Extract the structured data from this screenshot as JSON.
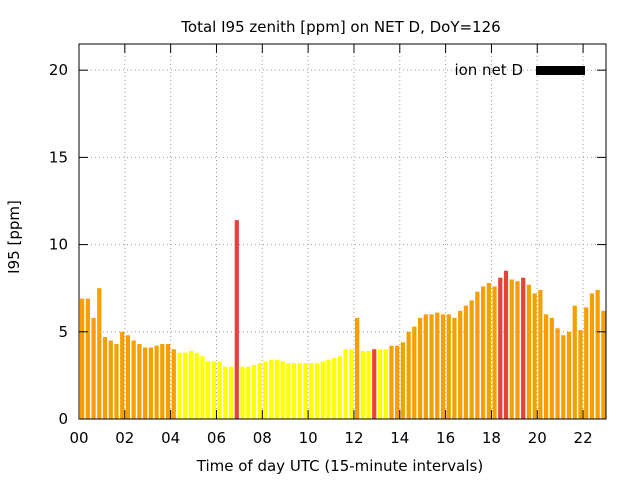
{
  "chart_data": {
    "type": "bar",
    "title": "Total I95 zenith [ppm] on NET D, DoY=126",
    "xlabel": "Time of day UTC (15-minute intervals)",
    "ylabel": "I95 [ppm]",
    "xlim": [
      0,
      23
    ],
    "ylim": [
      0,
      21.5
    ],
    "x_tick_labels": [
      "00",
      "02",
      "04",
      "06",
      "08",
      "10",
      "12",
      "14",
      "16",
      "18",
      "20",
      "22"
    ],
    "x_tick_values": [
      0,
      2,
      4,
      6,
      8,
      10,
      12,
      14,
      16,
      18,
      20,
      22
    ],
    "y_tick_values": [
      0,
      5,
      10,
      15,
      20
    ],
    "grid": true,
    "legend": {
      "position": "top-right",
      "entries": [
        {
          "name": "ion net D",
          "color": "#000000"
        }
      ]
    },
    "interval_hours": 0.25,
    "color_levels": {
      "low": "#ffff00",
      "medium": "#f5a000",
      "high": "#e8413c"
    },
    "values": [
      6.9,
      6.9,
      5.8,
      7.5,
      4.7,
      4.5,
      4.3,
      5.0,
      4.8,
      4.5,
      4.3,
      4.1,
      4.1,
      4.2,
      4.3,
      4.3,
      4.0,
      3.8,
      3.8,
      3.9,
      3.8,
      3.6,
      3.3,
      3.3,
      3.3,
      3.0,
      3.0,
      11.4,
      3.0,
      3.0,
      3.1,
      3.2,
      3.3,
      3.4,
      3.4,
      3.3,
      3.2,
      3.2,
      3.2,
      3.2,
      3.2,
      3.2,
      3.3,
      3.4,
      3.5,
      3.6,
      4.0,
      4.0,
      5.8,
      3.9,
      3.9,
      4.0,
      4.0,
      4.0,
      4.2,
      4.2,
      4.4,
      5.0,
      5.3,
      5.8,
      6.0,
      6.0,
      6.1,
      6.0,
      6.0,
      5.8,
      6.2,
      6.5,
      6.8,
      7.3,
      7.6,
      7.8,
      7.6,
      8.1,
      8.5,
      8.0,
      7.9,
      8.1,
      7.7,
      7.2,
      7.4,
      6.0,
      5.8,
      5.2,
      4.8,
      5.0,
      6.5,
      5.1,
      6.4,
      7.2,
      7.4,
      6.2,
      7.0
    ],
    "levels": [
      "medium",
      "medium",
      "medium",
      "medium",
      "medium",
      "medium",
      "medium",
      "medium",
      "medium",
      "medium",
      "medium",
      "medium",
      "medium",
      "medium",
      "medium",
      "medium",
      "medium",
      "low",
      "low",
      "low",
      "low",
      "low",
      "low",
      "low",
      "low",
      "low",
      "low",
      "high",
      "low",
      "low",
      "low",
      "low",
      "low",
      "low",
      "low",
      "low",
      "low",
      "low",
      "low",
      "low",
      "low",
      "low",
      "low",
      "low",
      "low",
      "low",
      "low",
      "low",
      "medium",
      "low",
      "low",
      "high",
      "low",
      "low",
      "medium",
      "medium",
      "medium",
      "medium",
      "medium",
      "medium",
      "medium",
      "medium",
      "medium",
      "medium",
      "medium",
      "medium",
      "medium",
      "medium",
      "medium",
      "medium",
      "medium",
      "medium",
      "medium",
      "high",
      "high",
      "medium",
      "medium",
      "high",
      "medium",
      "medium",
      "medium",
      "medium",
      "medium",
      "medium",
      "medium",
      "medium",
      "medium",
      "medium",
      "medium",
      "medium",
      "medium",
      "medium",
      "medium"
    ]
  }
}
